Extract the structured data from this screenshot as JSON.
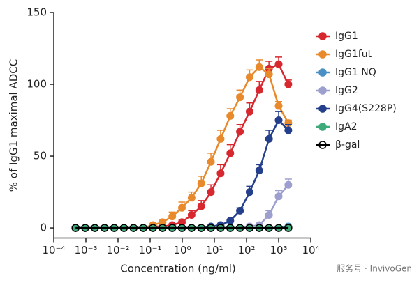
{
  "chart_data": {
    "type": "line",
    "xlabel": "Concentration (ng/ml)",
    "ylabel": "% of IgG1 maximal ADCC",
    "watermark": "服务号 · InvivoGen",
    "xscale": "log",
    "xlim": [
      0.0001,
      10000
    ],
    "ylim": [
      -7,
      150
    ],
    "xticks": [
      {
        "value": 0.0001,
        "label": "10⁻⁴"
      },
      {
        "value": 0.001,
        "label": "10⁻³"
      },
      {
        "value": 0.01,
        "label": "10⁻²"
      },
      {
        "value": 0.1,
        "label": "10⁻¹"
      },
      {
        "value": 1,
        "label": "10⁰"
      },
      {
        "value": 10,
        "label": "10¹"
      },
      {
        "value": 100,
        "label": "10²"
      },
      {
        "value": 1000,
        "label": "10³"
      },
      {
        "value": 10000,
        "label": "10⁴"
      }
    ],
    "yticks": [
      0,
      50,
      100,
      150
    ],
    "legend": "right",
    "x": [
      0.000476837158203125,
      0.00095367431640625,
      0.0019073486328125,
      0.003814697265625,
      0.00762939453125,
      0.0152587890625,
      0.030517578125,
      0.06103515625,
      0.1220703125,
      0.244140625,
      0.48828125,
      0.9765625,
      1.953125,
      3.90625,
      7.8125,
      15.625,
      31.25,
      62.5,
      125,
      250,
      500,
      1000,
      2000
    ],
    "series": [
      {
        "name": "IgG1",
        "color": "#d7282f",
        "values": [
          0,
          0,
          0,
          0,
          0,
          0,
          0,
          0,
          1,
          1,
          2,
          4,
          9,
          15,
          25,
          38,
          52,
          67,
          81,
          96,
          111,
          114,
          100
        ],
        "errors": [
          0,
          0,
          0,
          0,
          0,
          0,
          0,
          0,
          0,
          0,
          1,
          2,
          3,
          4,
          5,
          6,
          6,
          5,
          6,
          6,
          5,
          5,
          3
        ]
      },
      {
        "name": "IgG1fut",
        "color": "#e8892b",
        "values": [
          0,
          0,
          0,
          0,
          0,
          0,
          0,
          0,
          2,
          4,
          8,
          14,
          21,
          31,
          46,
          62,
          78,
          91,
          105,
          112,
          107,
          85,
          73
        ],
        "errors": [
          0,
          0,
          0,
          0,
          0,
          0,
          0,
          0,
          1,
          2,
          3,
          4,
          4,
          5,
          6,
          6,
          5,
          5,
          5,
          5,
          4,
          3,
          2
        ]
      },
      {
        "name": "IgG1 NQ",
        "color": "#4a90c4",
        "values": [
          0,
          0,
          0,
          0,
          0,
          0,
          0,
          0,
          0,
          0,
          0,
          0,
          0,
          0,
          0,
          0,
          0,
          0,
          0,
          0,
          0,
          0,
          1
        ]
      },
      {
        "name": "IgG2",
        "color": "#9d9fcf",
        "values": [
          0,
          0,
          0,
          0,
          0,
          0,
          0,
          0,
          0,
          0,
          0,
          0,
          0,
          0,
          0,
          0,
          0,
          0,
          1,
          2,
          9,
          22,
          30
        ],
        "errors": [
          0,
          0,
          0,
          0,
          0,
          0,
          0,
          0,
          0,
          0,
          0,
          0,
          0,
          0,
          0,
          0,
          0,
          0,
          0,
          1,
          3,
          4,
          4
        ]
      },
      {
        "name": "IgG4(S228P)",
        "color": "#243f8c",
        "values": [
          0,
          0,
          0,
          0,
          0,
          0,
          0,
          0,
          0,
          0,
          0,
          0,
          0,
          0,
          1,
          2,
          5,
          12,
          25,
          40,
          62,
          75,
          68
        ],
        "errors": [
          0,
          0,
          0,
          0,
          0,
          0,
          0,
          0,
          0,
          0,
          0,
          0,
          0,
          0,
          0,
          0,
          1,
          2,
          4,
          4,
          6,
          6,
          4
        ]
      },
      {
        "name": "IgA2",
        "color": "#3daa7a",
        "values": [
          0,
          0,
          0,
          0,
          0,
          0,
          0,
          0,
          0,
          0,
          0,
          0,
          0,
          0,
          0,
          0,
          0,
          0,
          0,
          0,
          0,
          0,
          0
        ]
      },
      {
        "name": "β-gal",
        "color": "#000000",
        "marker_fill": "none",
        "values": [
          0,
          0,
          0,
          0,
          0,
          0,
          0,
          0,
          0,
          0,
          0,
          0,
          0,
          0,
          0,
          0,
          0,
          0,
          0,
          0,
          0,
          0,
          0
        ]
      }
    ]
  }
}
